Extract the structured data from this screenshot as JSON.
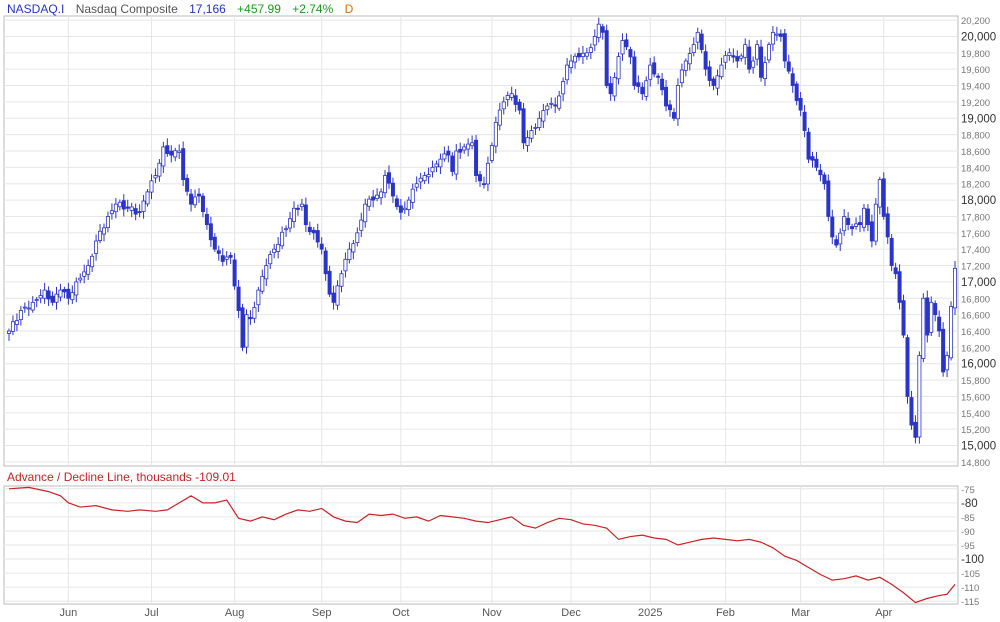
{
  "header": {
    "symbol": "NASDAQ.I",
    "name": "Nasdaq Composite",
    "last": "17,166",
    "change": "+457.99",
    "change_pct": "+2.74%",
    "frequency": "D"
  },
  "colors": {
    "symbol": "#2233cc",
    "name": "#555555",
    "last": "#2233cc",
    "up": "#1a9a1a",
    "freq": "#e07000",
    "candle": "#2a35c8",
    "adline": "#cc2222",
    "grid": "#e6e6e6",
    "axis_text": "#555555"
  },
  "subpanel": {
    "label": "Advance / Decline Line, thousands",
    "value": "-109.01"
  },
  "chart_data": [
    {
      "type": "candlestick",
      "title": "Nasdaq Composite",
      "ylim": [
        14750,
        20250
      ],
      "y_ticks": [
        14800,
        15000,
        15200,
        15400,
        15600,
        15800,
        16000,
        16200,
        16400,
        16600,
        16800,
        17000,
        17200,
        17400,
        17600,
        17800,
        18000,
        18200,
        18400,
        18600,
        18800,
        19000,
        19200,
        19400,
        19600,
        19800,
        20000,
        20200
      ],
      "y_major": [
        15000,
        16000,
        17000,
        18000,
        19000,
        20000
      ],
      "y_tick_labels": [
        "14,800",
        "15,000",
        "15,200",
        "15,400",
        "15,600",
        "15,800",
        "16,000",
        "16,200",
        "16,400",
        "16,600",
        "16,800",
        "17,000",
        "17,200",
        "17,400",
        "17,600",
        "17,800",
        "18,000",
        "18,200",
        "18,400",
        "18,600",
        "18,800",
        "19,000",
        "19,200",
        "19,400",
        "19,600",
        "19,800",
        "20,000",
        "20,200"
      ],
      "x_tick_labels": [
        "Jun",
        "Jul",
        "Aug",
        "Sep",
        "Oct",
        "Nov",
        "Dec",
        "2025",
        "Feb",
        "Mar",
        "Apr"
      ],
      "x_tick_sessions": [
        15,
        36,
        57,
        79,
        99,
        122,
        142,
        162,
        181,
        200,
        221
      ],
      "sessions": 239,
      "close_anchors": [
        [
          0,
          16400
        ],
        [
          3,
          16650
        ],
        [
          6,
          16750
        ],
        [
          9,
          16900
        ],
        [
          11,
          16750
        ],
        [
          13,
          16900
        ],
        [
          15,
          16800
        ],
        [
          17,
          17000
        ],
        [
          20,
          17200
        ],
        [
          22,
          17500
        ],
        [
          25,
          17800
        ],
        [
          27,
          17950
        ],
        [
          30,
          17900
        ],
        [
          33,
          17850
        ],
        [
          35,
          18100
        ],
        [
          37,
          18300
        ],
        [
          38,
          18450
        ],
        [
          39,
          18650
        ],
        [
          41,
          18550
        ],
        [
          43,
          18600
        ],
        [
          44,
          18250
        ],
        [
          46,
          17950
        ],
        [
          48,
          18050
        ],
        [
          50,
          17700
        ],
        [
          52,
          17400
        ],
        [
          54,
          17250
        ],
        [
          56,
          17300
        ],
        [
          57,
          16950
        ],
        [
          58,
          16650
        ],
        [
          59,
          16200
        ],
        [
          60,
          16600
        ],
        [
          61,
          16550
        ],
        [
          63,
          16900
        ],
        [
          65,
          17200
        ],
        [
          67,
          17400
        ],
        [
          70,
          17650
        ],
        [
          72,
          17900
        ],
        [
          74,
          17950
        ],
        [
          75,
          17700
        ],
        [
          77,
          17600
        ],
        [
          79,
          17400
        ],
        [
          80,
          17100
        ],
        [
          81,
          16850
        ],
        [
          82,
          16750
        ],
        [
          84,
          17100
        ],
        [
          86,
          17400
        ],
        [
          88,
          17600
        ],
        [
          90,
          17950
        ],
        [
          92,
          18000
        ],
        [
          94,
          18100
        ],
        [
          95,
          18300
        ],
        [
          97,
          18050
        ],
        [
          99,
          17850
        ],
        [
          101,
          18000
        ],
        [
          103,
          18200
        ],
        [
          105,
          18300
        ],
        [
          107,
          18400
        ],
        [
          109,
          18500
        ],
        [
          111,
          18550
        ],
        [
          112,
          18350
        ],
        [
          113,
          18600
        ],
        [
          115,
          18650
        ],
        [
          117,
          18700
        ],
        [
          118,
          18300
        ],
        [
          120,
          18200
        ],
        [
          121,
          18450
        ],
        [
          123,
          18950
        ],
        [
          125,
          19200
        ],
        [
          127,
          19300
        ],
        [
          129,
          19100
        ],
        [
          130,
          18700
        ],
        [
          132,
          18850
        ],
        [
          134,
          19000
        ],
        [
          136,
          19150
        ],
        [
          138,
          19150
        ],
        [
          140,
          19450
        ],
        [
          141,
          19650
        ],
        [
          142,
          19700
        ],
        [
          144,
          19750
        ],
        [
          146,
          19800
        ],
        [
          148,
          20000
        ],
        [
          149,
          20150
        ],
        [
          150,
          20050
        ],
        [
          151,
          19400
        ],
        [
          152,
          19300
        ],
        [
          153,
          19500
        ],
        [
          155,
          19950
        ],
        [
          157,
          19750
        ],
        [
          158,
          19400
        ],
        [
          160,
          19300
        ],
        [
          162,
          19650
        ],
        [
          164,
          19500
        ],
        [
          166,
          19150
        ],
        [
          168,
          19000
        ],
        [
          169,
          19400
        ],
        [
          171,
          19700
        ],
        [
          173,
          19900
        ],
        [
          174,
          20050
        ],
        [
          176,
          19600
        ],
        [
          178,
          19400
        ],
        [
          180,
          19650
        ],
        [
          182,
          19800
        ],
        [
          184,
          19700
        ],
        [
          186,
          19900
        ],
        [
          187,
          19600
        ],
        [
          188,
          19700
        ],
        [
          189,
          19900
        ],
        [
          190,
          19500
        ],
        [
          192,
          19900
        ],
        [
          193,
          20050
        ],
        [
          195,
          20000
        ],
        [
          196,
          19700
        ],
        [
          198,
          19400
        ],
        [
          200,
          19100
        ],
        [
          201,
          18850
        ],
        [
          202,
          18500
        ],
        [
          204,
          18400
        ],
        [
          206,
          18200
        ],
        [
          207,
          17800
        ],
        [
          208,
          17550
        ],
        [
          209,
          17450
        ],
        [
          211,
          17800
        ],
        [
          213,
          17650
        ],
        [
          215,
          17700
        ],
        [
          216,
          17900
        ],
        [
          217,
          17700
        ],
        [
          218,
          17500
        ],
        [
          219,
          17950
        ],
        [
          220,
          18250
        ],
        [
          221,
          17800
        ],
        [
          222,
          17550
        ],
        [
          223,
          17200
        ],
        [
          224,
          17100
        ],
        [
          225,
          16750
        ],
        [
          226,
          16350
        ],
        [
          227,
          15600
        ],
        [
          228,
          15250
        ],
        [
          229,
          15100
        ],
        [
          230,
          16100
        ],
        [
          231,
          16800
        ],
        [
          232,
          16350
        ],
        [
          233,
          16750
        ],
        [
          234,
          16600
        ],
        [
          235,
          16400
        ],
        [
          236,
          15900
        ],
        [
          237,
          16100
        ],
        [
          238,
          16700
        ],
        [
          239,
          17166
        ]
      ]
    },
    {
      "type": "line",
      "title": "Advance / Decline Line, thousands",
      "ylim": [
        -116,
        -74
      ],
      "y_ticks": [
        -115,
        -110,
        -105,
        -100,
        -95,
        -90,
        -85,
        -80,
        -75
      ],
      "y_major": [
        -100,
        -80
      ],
      "y_tick_labels": [
        "-115",
        "-110",
        "-105",
        "-100",
        "-95",
        "-90",
        "-85",
        "-80",
        "-75"
      ],
      "series": [
        {
          "points": [
            [
              0,
              -75
            ],
            [
              5,
              -74.5
            ],
            [
              10,
              -76
            ],
            [
              13,
              -77.5
            ],
            [
              15,
              -80
            ],
            [
              18,
              -81.5
            ],
            [
              22,
              -81
            ],
            [
              26,
              -82.5
            ],
            [
              30,
              -83
            ],
            [
              33,
              -82.5
            ],
            [
              37,
              -83
            ],
            [
              40,
              -82.5
            ],
            [
              43,
              -80
            ],
            [
              46,
              -77.5
            ],
            [
              49,
              -80
            ],
            [
              52,
              -80
            ],
            [
              55,
              -79
            ],
            [
              58,
              -85.5
            ],
            [
              61,
              -86.5
            ],
            [
              64,
              -85
            ],
            [
              67,
              -86
            ],
            [
              70,
              -84
            ],
            [
              73,
              -82.5
            ],
            [
              76,
              -83
            ],
            [
              79,
              -82
            ],
            [
              82,
              -85
            ],
            [
              85,
              -86.5
            ],
            [
              88,
              -87
            ],
            [
              91,
              -84
            ],
            [
              94,
              -84.5
            ],
            [
              97,
              -84
            ],
            [
              100,
              -85.5
            ],
            [
              103,
              -85
            ],
            [
              106,
              -86.5
            ],
            [
              109,
              -84.5
            ],
            [
              112,
              -85
            ],
            [
              115,
              -85.5
            ],
            [
              118,
              -86.5
            ],
            [
              121,
              -87
            ],
            [
              124,
              -86
            ],
            [
              127,
              -85
            ],
            [
              130,
              -88
            ],
            [
              133,
              -89
            ],
            [
              136,
              -87
            ],
            [
              139,
              -85.5
            ],
            [
              142,
              -86
            ],
            [
              145,
              -87.5
            ],
            [
              148,
              -88
            ],
            [
              151,
              -89
            ],
            [
              154,
              -93
            ],
            [
              157,
              -92
            ],
            [
              160,
              -91.5
            ],
            [
              163,
              -92.5
            ],
            [
              166,
              -93
            ],
            [
              169,
              -95
            ],
            [
              172,
              -94
            ],
            [
              175,
              -93
            ],
            [
              178,
              -92.5
            ],
            [
              181,
              -93
            ],
            [
              184,
              -93.5
            ],
            [
              187,
              -93
            ],
            [
              190,
              -94
            ],
            [
              193,
              -96
            ],
            [
              196,
              -99
            ],
            [
              199,
              -100.5
            ],
            [
              202,
              -103
            ],
            [
              205,
              -105.5
            ],
            [
              208,
              -107.5
            ],
            [
              211,
              -107
            ],
            [
              214,
              -106
            ],
            [
              217,
              -107.5
            ],
            [
              220,
              -106.5
            ],
            [
              223,
              -109
            ],
            [
              226,
              -112
            ],
            [
              229,
              -115.5
            ],
            [
              232,
              -114
            ],
            [
              235,
              -113
            ],
            [
              237,
              -112.5
            ],
            [
              239,
              -109
            ]
          ]
        }
      ]
    }
  ]
}
